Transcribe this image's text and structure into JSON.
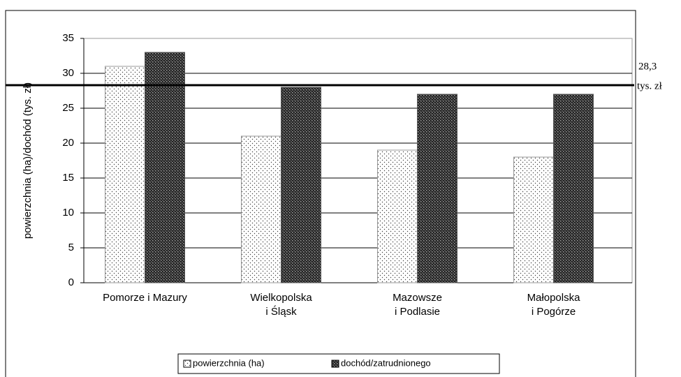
{
  "chart_data": {
    "type": "bar",
    "ylabel": "powierzchnia (ha)/dochód (tys. zł)",
    "categories": [
      [
        "Pomorze i Mazury"
      ],
      [
        "Wielkopolska",
        "i Śląsk"
      ],
      [
        "Mazowsze",
        "i Podlasie"
      ],
      [
        "Małopolska",
        "i Pogórze"
      ]
    ],
    "series": [
      {
        "name": "powierzchnia (ha)",
        "color": "#ffffff",
        "pattern": "dots",
        "values": [
          31,
          21,
          19,
          18
        ]
      },
      {
        "name": "dochód/zatrudnionego",
        "color": "#555555",
        "pattern": "crosshatch",
        "values": [
          33,
          28,
          27,
          27
        ]
      }
    ],
    "reference_line": {
      "value": 28.3,
      "label": "28,3",
      "unit": "tys. zł"
    },
    "ylim": [
      0,
      35
    ],
    "yticks": [
      0,
      5,
      10,
      15,
      20,
      25,
      30,
      35
    ],
    "grid": true,
    "legend": "bottom"
  }
}
